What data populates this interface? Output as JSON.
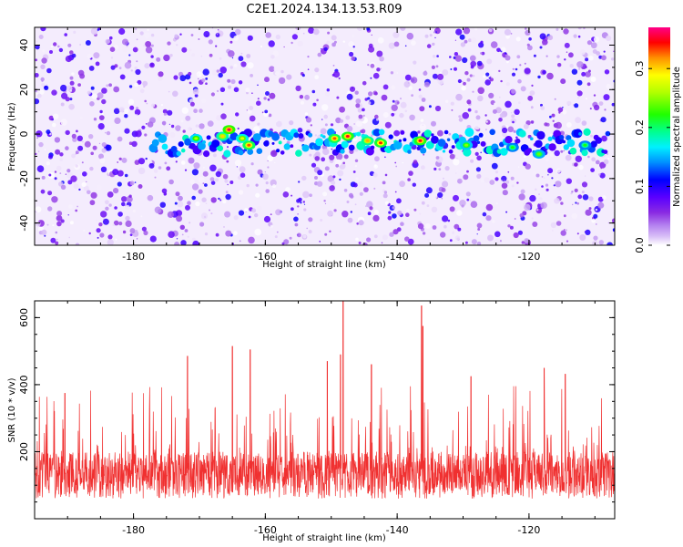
{
  "figure": {
    "title": "C2E1.2024.134.13.53.R09"
  },
  "chart_data": [
    {
      "type": "heatmap",
      "title": "C2E1.2024.134.13.53.R09",
      "xlabel": "Height of straight line (km)",
      "ylabel": "Frequency (Hz)",
      "xlim": [
        -195,
        -107
      ],
      "ylim": [
        -50,
        48
      ],
      "x_ticks": [
        -180,
        -160,
        -140,
        -120
      ],
      "y_ticks": [
        -40,
        -20,
        0,
        20,
        40
      ],
      "grid": false,
      "colorbar": {
        "label": "Normalized spectral amplitude",
        "range": [
          0.0,
          0.37
        ],
        "ticks": [
          0.0,
          0.1,
          0.2,
          0.3
        ],
        "tick_labels": [
          "0.0",
          "0.1",
          "0.2",
          "0.3"
        ]
      },
      "signal_band": {
        "frequency_hz": -4,
        "x_range": [
          -177,
          -108
        ],
        "peaks": [
          {
            "x": -170.5,
            "y": -2,
            "value": 0.26
          },
          {
            "x": -166.5,
            "y": -1,
            "value": 0.3
          },
          {
            "x": -165.5,
            "y": 2,
            "value": 0.36
          },
          {
            "x": -163.5,
            "y": -2,
            "value": 0.28
          },
          {
            "x": -162.5,
            "y": -5,
            "value": 0.33
          },
          {
            "x": -149.5,
            "y": -2,
            "value": 0.33
          },
          {
            "x": -147.5,
            "y": -1,
            "value": 0.35
          },
          {
            "x": -144.5,
            "y": -3,
            "value": 0.31
          },
          {
            "x": -142.5,
            "y": -4,
            "value": 0.34
          },
          {
            "x": -136.5,
            "y": -3,
            "value": 0.35
          },
          {
            "x": -129.5,
            "y": -5,
            "value": 0.25
          },
          {
            "x": -122.5,
            "y": -6,
            "value": 0.22
          },
          {
            "x": -118.5,
            "y": -9,
            "value": 0.24
          },
          {
            "x": -111.5,
            "y": -5,
            "value": 0.22
          }
        ]
      },
      "colors": [
        "#ffffff",
        "#d9bff7",
        "#b583f0",
        "#9a50e9",
        "#8a2be2",
        "#7000ff",
        "#3000ff",
        "#0000ff",
        "#00a0ff",
        "#00ffd0",
        "#00ff40",
        "#80ff00",
        "#ffff00",
        "#ffa000",
        "#ff0000",
        "#ff0080"
      ]
    },
    {
      "type": "line",
      "xlabel": "Height of straight line (km)",
      "ylabel": "SNR (10 * v/v)",
      "xlim": [
        -195,
        -107
      ],
      "ylim": [
        0,
        650
      ],
      "x_ticks": [
        -180,
        -160,
        -140,
        -120
      ],
      "y_ticks": [
        200,
        400,
        600
      ],
      "grid": false,
      "series": [
        {
          "color": "#f03030",
          "baseline_mean": 130,
          "noise_envelope": [
            60,
            320
          ],
          "peaks": [
            {
              "x": -148.2,
              "y": 650
            },
            {
              "x": -148.6,
              "y": 490
            },
            {
              "x": -136.3,
              "y": 635
            },
            {
              "x": -136.1,
              "y": 575
            },
            {
              "x": -165.0,
              "y": 515
            },
            {
              "x": -162.3,
              "y": 505
            },
            {
              "x": -143.9,
              "y": 460
            },
            {
              "x": -171.8,
              "y": 485
            },
            {
              "x": -150.6,
              "y": 470
            },
            {
              "x": -190.4,
              "y": 375
            },
            {
              "x": -128.8,
              "y": 425
            },
            {
              "x": -117.7,
              "y": 450
            },
            {
              "x": -114.5,
              "y": 432
            }
          ]
        }
      ]
    }
  ]
}
